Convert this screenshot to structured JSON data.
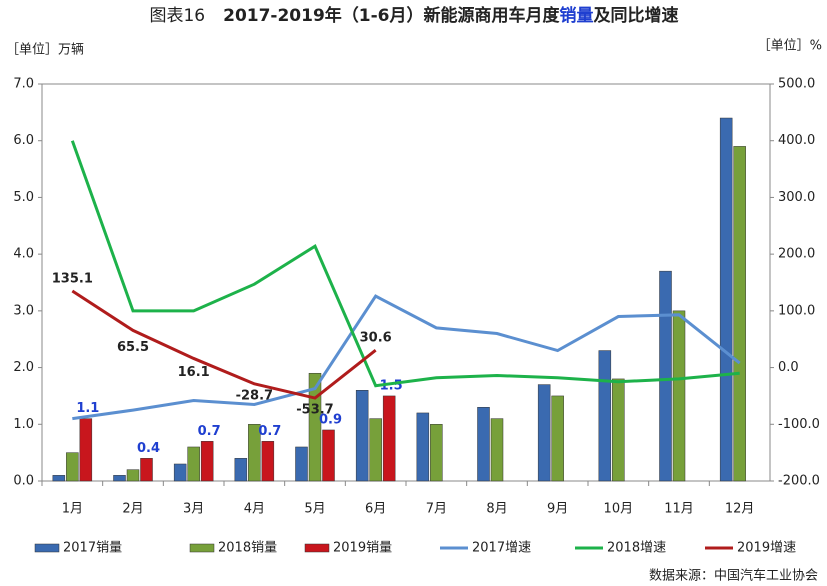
{
  "chart_data": {
    "type": "bar",
    "title": [
      "图表16",
      "2017-2019年（1-6月）新能源商用车月度",
      "销量",
      "及同比增速"
    ],
    "y_label": "［单位］万辆",
    "y2_label": "［单位］%",
    "source": "数据来源：中国汽车工业协会",
    "categories": [
      "1月",
      "2月",
      "3月",
      "4月",
      "5月",
      "6月",
      "7月",
      "8月",
      "9月",
      "10月",
      "11月",
      "12月"
    ],
    "ylim": [
      0,
      7
    ],
    "yticks": [
      {
        "value": 0,
        "label": "0.0"
      },
      {
        "value": 1,
        "label": "1.0"
      },
      {
        "value": 2,
        "label": "2.0"
      },
      {
        "value": 3,
        "label": "3.0"
      },
      {
        "value": 4,
        "label": "4.0"
      },
      {
        "value": 5,
        "label": "5.0"
      },
      {
        "value": 6,
        "label": "6.0"
      },
      {
        "value": 7,
        "label": "7.0"
      }
    ],
    "y2lim": [
      -200,
      500
    ],
    "y2ticks": [
      {
        "value": -200,
        "label": "-200.0"
      },
      {
        "value": -100,
        "label": "-100.0"
      },
      {
        "value": 0,
        "label": "0.0"
      },
      {
        "value": 100,
        "label": "100.0"
      },
      {
        "value": 200,
        "label": "200.0"
      },
      {
        "value": 300,
        "label": "300.0"
      },
      {
        "value": 400,
        "label": "400.0"
      },
      {
        "value": 500,
        "label": "500.0"
      }
    ],
    "grid": false,
    "series": [
      {
        "name": "2017销量",
        "type": "bar",
        "color": "#3a6ab0",
        "values": [
          0.1,
          0.1,
          0.3,
          0.4,
          0.6,
          1.6,
          1.2,
          1.3,
          1.7,
          2.3,
          3.7,
          6.4
        ]
      },
      {
        "name": "2018销量",
        "type": "bar",
        "color": "#77a03a",
        "values": [
          0.5,
          0.2,
          0.6,
          1.0,
          1.9,
          1.1,
          1.0,
          1.1,
          1.5,
          1.8,
          3.0,
          5.9
        ]
      },
      {
        "name": "2019销量",
        "type": "bar",
        "color": "#c8161d",
        "values": [
          1.1,
          0.4,
          0.7,
          0.7,
          0.9,
          1.5,
          null,
          null,
          null,
          null,
          null,
          null
        ],
        "value_labels": [
          "1.1",
          "0.4",
          "0.7",
          "0.7",
          "0.9",
          "1.5",
          null,
          null,
          null,
          null,
          null,
          null
        ]
      },
      {
        "name": "2017增速",
        "type": "line",
        "axis": "y2",
        "color": "#5b8fd0",
        "values": [
          -90,
          -75,
          -58,
          -65,
          -37,
          126,
          70,
          60,
          30,
          90,
          93,
          8
        ]
      },
      {
        "name": "2018增速",
        "type": "line",
        "axis": "y2",
        "color": "#1db24a",
        "values": [
          400,
          100,
          100,
          147,
          214,
          -32,
          -18,
          -14,
          -18,
          -25,
          -20,
          -10
        ]
      },
      {
        "name": "2019增速",
        "type": "line",
        "axis": "y2",
        "color": "#b01c1c",
        "values": [
          135.1,
          65.5,
          16.1,
          -28.7,
          -53.7,
          30.6,
          null,
          null,
          null,
          null,
          null,
          null
        ],
        "value_labels": [
          "135.1",
          "65.5",
          "16.1",
          "-28.7",
          "-53.7",
          "30.6",
          null,
          null,
          null,
          null,
          null,
          null
        ]
      }
    ]
  }
}
